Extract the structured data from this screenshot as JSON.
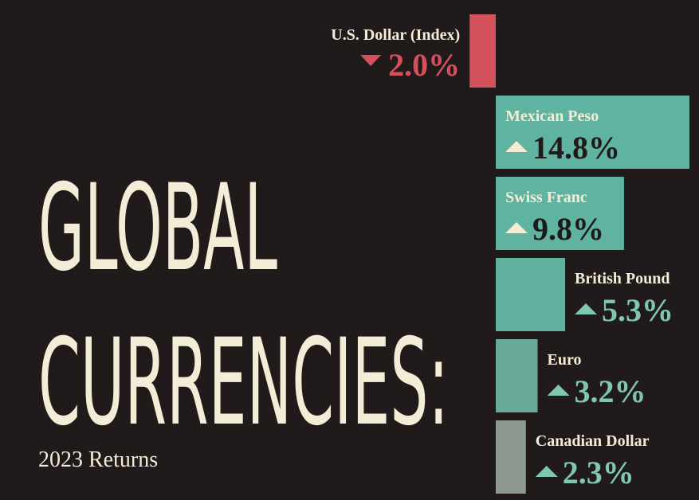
{
  "chart_data": {
    "type": "bar",
    "orientation": "horizontal",
    "title": [
      "GLOBAL",
      "CURRENCIES:"
    ],
    "subtitle": "2023 Returns",
    "categories": [
      "U.S. Dollar (Index)",
      "Mexican Peso",
      "Swiss Franc",
      "British Pound",
      "Euro",
      "Canadian Dollar"
    ],
    "values": [
      -2.0,
      14.8,
      9.8,
      5.3,
      3.2,
      2.3
    ],
    "value_labels": [
      "2.0%",
      "14.8%",
      "9.8%",
      "5.3%",
      "3.2%",
      "2.3%"
    ],
    "colors": [
      "#d4505b",
      "#5fb3a0",
      "#5fb3a0",
      "#5fb09d",
      "#6aa898",
      "#8d9890"
    ]
  }
}
